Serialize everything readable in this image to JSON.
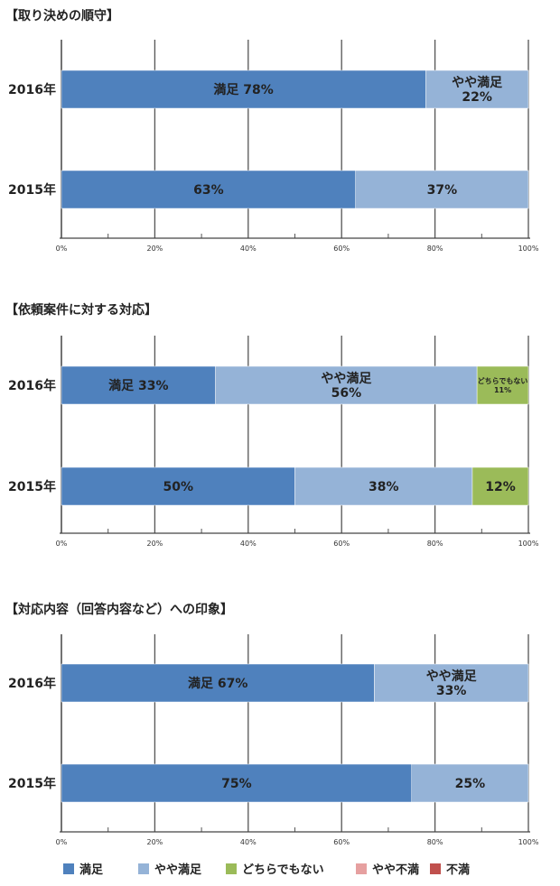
{
  "legend": {
    "items": [
      {
        "label": "満足",
        "color": "#4f81bd"
      },
      {
        "label": "やや満足",
        "color": "#95b3d7"
      },
      {
        "label": "どちらでもない",
        "color": "#9bbb59"
      },
      {
        "label": "やや不満",
        "color": "#e6a0a0"
      },
      {
        "label": "不満",
        "color": "#c0504d"
      }
    ]
  },
  "chart_data": [
    {
      "type": "bar",
      "orientation": "horizontal-stacked-percent",
      "title": "【取り決めの順守】",
      "categories": [
        "2016年",
        "2015年"
      ],
      "xlim": [
        0,
        100
      ],
      "xticks": [
        "0%",
        "20%",
        "40%",
        "60%",
        "80%",
        "100%"
      ],
      "grid": true,
      "series": [
        {
          "name": "満足",
          "values": [
            78,
            63
          ],
          "labels": [
            "満足 78%",
            "63%"
          ]
        },
        {
          "name": "やや満足",
          "values": [
            22,
            37
          ],
          "labels": [
            "やや満足\n22%",
            "37%"
          ]
        }
      ]
    },
    {
      "type": "bar",
      "orientation": "horizontal-stacked-percent",
      "title": "【依頼案件に対する対応】",
      "categories": [
        "2016年",
        "2015年"
      ],
      "xlim": [
        0,
        100
      ],
      "xticks": [
        "0%",
        "20%",
        "40%",
        "60%",
        "80%",
        "100%"
      ],
      "grid": true,
      "series": [
        {
          "name": "満足",
          "values": [
            33,
            50
          ],
          "labels": [
            "満足 33%",
            "50%"
          ]
        },
        {
          "name": "やや満足",
          "values": [
            56,
            38
          ],
          "labels": [
            "やや満足\n56%",
            "38%"
          ]
        },
        {
          "name": "どちらでもない",
          "values": [
            11,
            12
          ],
          "labels": [
            "どちらでもない\n11%",
            "12%"
          ]
        }
      ]
    },
    {
      "type": "bar",
      "orientation": "horizontal-stacked-percent",
      "title": "【対応内容（回答内容など）への印象】",
      "categories": [
        "2016年",
        "2015年"
      ],
      "xlim": [
        0,
        100
      ],
      "xticks": [
        "0%",
        "20%",
        "40%",
        "60%",
        "80%",
        "100%"
      ],
      "grid": true,
      "series": [
        {
          "name": "満足",
          "values": [
            67,
            75
          ],
          "labels": [
            "満足 67%",
            "75%"
          ]
        },
        {
          "name": "やや満足",
          "values": [
            33,
            25
          ],
          "labels": [
            "やや満足\n33%",
            "25%"
          ]
        }
      ]
    }
  ]
}
